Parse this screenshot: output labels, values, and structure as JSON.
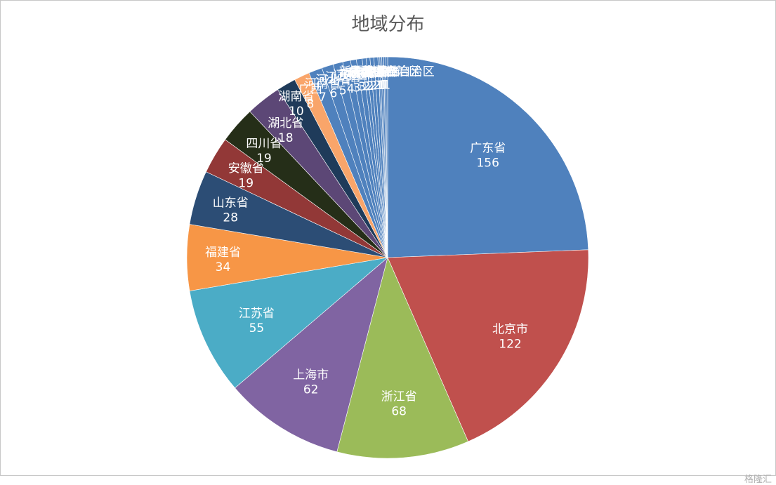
{
  "chart_data": {
    "type": "pie",
    "title": "地域分布",
    "slices": [
      {
        "label": "广东省",
        "value": 156,
        "color": "#4f81bd"
      },
      {
        "label": "北京市",
        "value": 122,
        "color": "#c0504d"
      },
      {
        "label": "浙江省",
        "value": 68,
        "color": "#9bbb59"
      },
      {
        "label": "上海市",
        "value": 62,
        "color": "#8064a2"
      },
      {
        "label": "江苏省",
        "value": 55,
        "color": "#4bacc6"
      },
      {
        "label": "福建省",
        "value": 34,
        "color": "#f79646"
      },
      {
        "label": "山东省",
        "value": 28,
        "color": "#2c4d75"
      },
      {
        "label": "安徽省",
        "value": 19,
        "color": "#923837"
      },
      {
        "label": "四川省",
        "value": 19,
        "color": "#252e18"
      },
      {
        "label": "湖北省",
        "value": 18,
        "color": "#5c4776"
      },
      {
        "label": "湖南省",
        "value": 10,
        "color": "#1f3b5a"
      },
      {
        "label": "广西",
        "value": 8,
        "color": "#f9a56a"
      },
      {
        "label": "河南省",
        "value": 7,
        "color": "#4f81bd"
      },
      {
        "label": "河北省",
        "value": 6,
        "color": "#4f81bd"
      },
      {
        "label": "江西省",
        "value": 5,
        "color": "#4f81bd"
      },
      {
        "label": "辽宁省",
        "value": 4,
        "color": "#4f81bd"
      },
      {
        "label": "重庆市",
        "value": 3,
        "color": "#4f81bd"
      },
      {
        "label": "天津市",
        "value": 3,
        "color": "#4f81bd"
      },
      {
        "label": "陕西省",
        "value": 2,
        "color": "#4f81bd"
      },
      {
        "label": "云南省",
        "value": 2,
        "color": "#4f81bd"
      },
      {
        "label": "黑龙江省",
        "value": 2,
        "color": "#4f81bd"
      },
      {
        "label": "吉林省",
        "value": 2,
        "color": "#4f81bd"
      },
      {
        "label": "海南省",
        "value": 1,
        "color": "#4f81bd"
      },
      {
        "label": "贵州省",
        "value": 1,
        "color": "#4f81bd"
      },
      {
        "label": "甘肃省",
        "value": 1,
        "color": "#4f81bd"
      },
      {
        "label": "内蒙古自治区",
        "value": 1,
        "color": "#4f81bd"
      },
      {
        "label": "新疆维吾尔自治区",
        "value": 1,
        "color": "#4f81bd"
      }
    ],
    "start_angle_deg": 0,
    "direction": "clockwise",
    "label_color": "#ffffff",
    "slice_border_color": "#ffffff"
  },
  "watermark": "格隆汇"
}
